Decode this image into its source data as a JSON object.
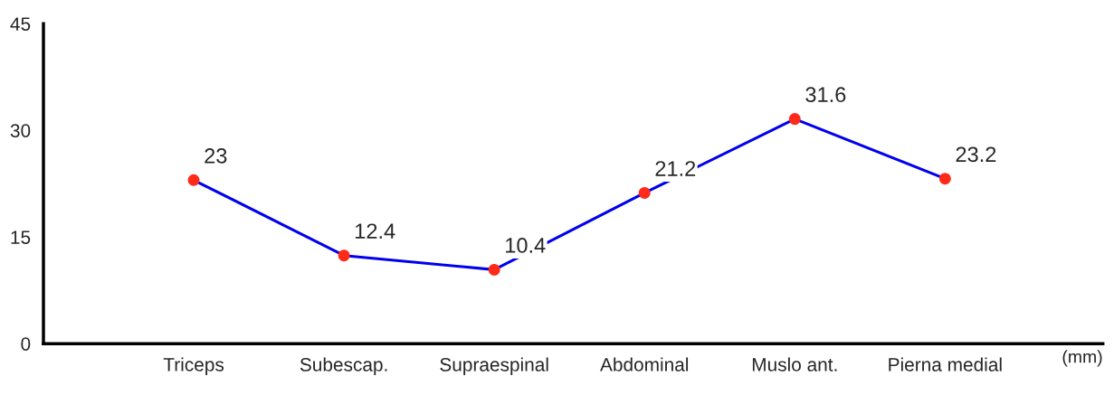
{
  "chart_data": {
    "type": "line",
    "categories": [
      "Triceps",
      "Subescap.",
      "Supraespinal",
      "Abdominal",
      "Muslo ant.",
      "Pierna medial"
    ],
    "series": [
      {
        "color": "#0000ee",
        "values": [
          23,
          12.4,
          10.4,
          21.2,
          31.6,
          23.2
        ],
        "colors": [
          "#ff2a1a",
          "#ff2a1a",
          "#ff2a1a",
          "#ff2a1a",
          "#ff2a1a",
          "#ff2a1a"
        ]
      }
    ],
    "marker": "circle",
    "line_style": "solid",
    "ylim": [
      0,
      45
    ],
    "yticks": [
      0,
      15,
      30,
      45
    ],
    "data_labels": true,
    "grid": false,
    "legend": false,
    "annotations": [
      "(mm)"
    ]
  }
}
